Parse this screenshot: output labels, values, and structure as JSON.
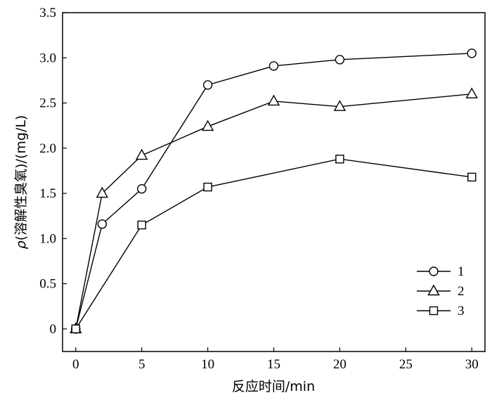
{
  "chart_data": {
    "type": "line",
    "xlabel": "反应时间/min",
    "ylabel_symbol": "ρ",
    "ylabel": "(溶解性臭氧)/(mg/L)",
    "xlim": [
      -1,
      31
    ],
    "ylim": [
      -0.25,
      3.5
    ],
    "x_ticks": [
      "0",
      "5",
      "10",
      "15",
      "20",
      "25",
      "30"
    ],
    "y_ticks": [
      "0",
      "0.5",
      "1.0",
      "1.5",
      "2.0",
      "2.5",
      "3.0",
      "3.5"
    ],
    "grid": false,
    "legend_position": "bottom-right",
    "series": [
      {
        "name": "1",
        "marker": "circle",
        "x": [
          0,
          2,
          5,
          10,
          15,
          20,
          30
        ],
        "y": [
          0,
          1.16,
          1.55,
          2.7,
          2.91,
          2.98,
          3.05
        ]
      },
      {
        "name": "2",
        "marker": "triangle",
        "x": [
          0,
          2,
          5,
          10,
          15,
          20,
          30
        ],
        "y": [
          0,
          1.5,
          1.92,
          2.24,
          2.52,
          2.46,
          2.6
        ]
      },
      {
        "name": "3",
        "marker": "square",
        "x": [
          0,
          5,
          10,
          20,
          30
        ],
        "y": [
          0,
          1.15,
          1.57,
          1.88,
          1.68
        ]
      }
    ]
  }
}
